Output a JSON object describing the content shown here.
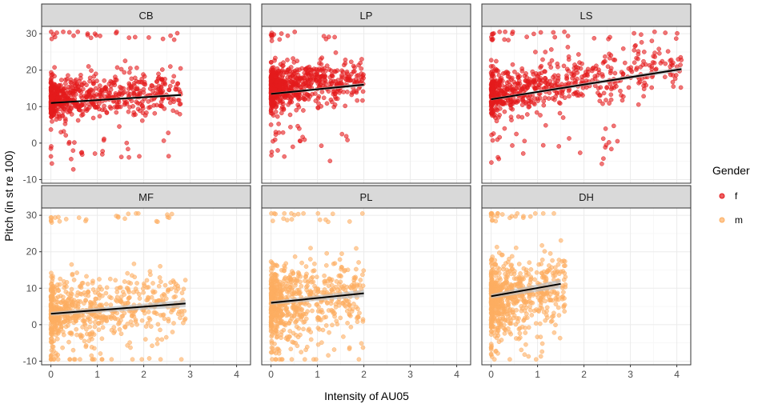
{
  "chart_data": {
    "type": "scatter",
    "facet_layout": "2x3 grid",
    "xlabel": "Intensity of AU05",
    "ylabel": "Pitch (in st re 100)",
    "xlim": [
      -0.2,
      4.3
    ],
    "ylim": [
      -11,
      32
    ],
    "x_ticks": [
      0,
      1,
      2,
      3,
      4
    ],
    "y_ticks": [
      -10,
      0,
      10,
      20,
      30
    ],
    "grid": true,
    "legend": {
      "title": "Gender",
      "position": "right",
      "entries": [
        {
          "label": "f",
          "color": "#e41a1c"
        },
        {
          "label": "m",
          "color": "#fdae61"
        }
      ]
    },
    "panels": [
      {
        "strip": "CB",
        "gender": "f",
        "x_range": [
          0,
          2.8
        ],
        "y_center": 12,
        "y_spread": 3,
        "fit": {
          "x": [
            0,
            2.8
          ],
          "y": [
            11.0,
            13.2
          ]
        },
        "se_band": 0.4
      },
      {
        "strip": "LP",
        "gender": "f",
        "x_range": [
          0,
          2.0
        ],
        "y_center": 15,
        "y_spread": 3,
        "fit": {
          "x": [
            0,
            2.0
          ],
          "y": [
            13.5,
            16.0
          ]
        },
        "se_band": 0.5
      },
      {
        "strip": "LS",
        "gender": "f",
        "x_range": [
          0,
          4.1
        ],
        "y_center": 13,
        "y_spread": 3.5,
        "fit": {
          "x": [
            0,
            4.1
          ],
          "y": [
            12.0,
            20.3
          ]
        },
        "se_band": 0.6
      },
      {
        "strip": "MF",
        "gender": "m",
        "x_range": [
          0,
          2.9
        ],
        "y_center": 3,
        "y_spread": 4.5,
        "fit": {
          "x": [
            0,
            2.9
          ],
          "y": [
            3.0,
            5.8
          ]
        },
        "se_band": 1.0
      },
      {
        "strip": "PL",
        "gender": "m",
        "x_range": [
          0,
          2.0
        ],
        "y_center": 6,
        "y_spread": 5,
        "fit": {
          "x": [
            0,
            2.0
          ],
          "y": [
            6.0,
            8.6
          ]
        },
        "se_band": 1.0
      },
      {
        "strip": "DH",
        "gender": "m",
        "x_range": [
          0,
          1.6
        ],
        "y_center": 7,
        "y_spread": 5,
        "fit": {
          "x": [
            0,
            1.5
          ],
          "y": [
            7.8,
            11.2
          ]
        },
        "se_band": 1.2
      }
    ]
  },
  "colors": {
    "f": "#e41a1c",
    "m": "#fdae61",
    "fit_line": "#000000",
    "se_band": "#bdbdbd",
    "strip_fill": "#d9d9d9",
    "grid": "#ebebeb",
    "panel_border": "#333333"
  }
}
